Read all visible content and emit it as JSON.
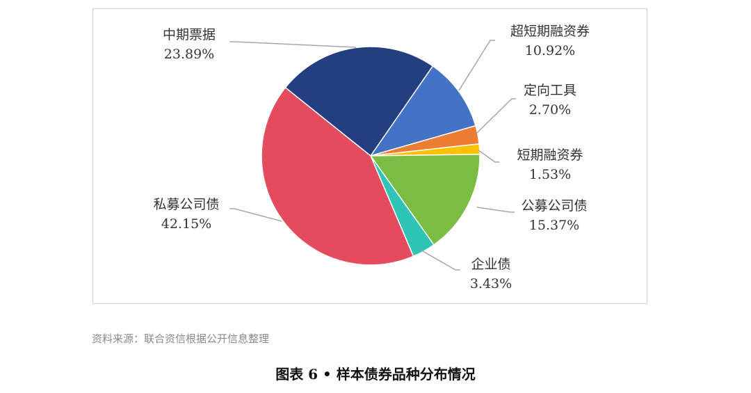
{
  "chart_data": {
    "type": "pie",
    "title": "图表 6 • 样本债券品种分布情况",
    "slices": [
      {
        "label": "超短期融资券",
        "value": 10.92,
        "pct": "10.92%",
        "color": "#4472c4"
      },
      {
        "label": "定向工具",
        "value": 2.7,
        "pct": "2.70%",
        "color": "#ed7d31"
      },
      {
        "label": "短期融资券",
        "value": 1.53,
        "pct": "1.53%",
        "color": "#ffc000"
      },
      {
        "label": "公募公司债",
        "value": 15.37,
        "pct": "15.37%",
        "color": "#7abd42"
      },
      {
        "label": "企业债",
        "value": 3.43,
        "pct": "3.43%",
        "color": "#2ec4b6"
      },
      {
        "label": "私募公司债",
        "value": 42.15,
        "pct": "42.15%",
        "color": "#e54b5e"
      },
      {
        "label": "中期票据",
        "value": 23.89,
        "pct": "23.89%",
        "color": "#243f7f"
      }
    ],
    "start_angle_deg": 34.7
  },
  "source": "资料来源：联合资信根据公开信息整理",
  "caption": "图表 6 • 样本债券品种分布情况"
}
